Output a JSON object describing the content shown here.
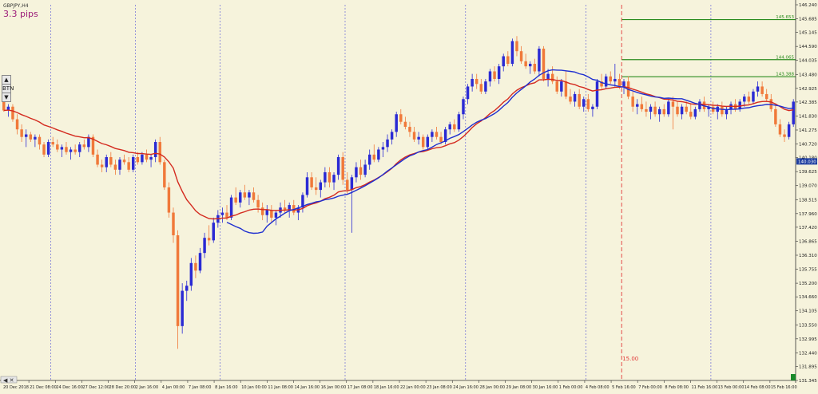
{
  "header": {
    "symbol_label": "GBPJPY,H4",
    "spread_label": "3.3 pips"
  },
  "side_controls": {
    "up_label": "▲",
    "mid_label": "BTN",
    "down_label": "▼"
  },
  "colors": {
    "background": "#f6f3dc",
    "bull_candle": "#2a2ad4",
    "bear_candle": "#f0793a",
    "ma_fast": "#d42a1f",
    "ma_slow": "#1f2fd0",
    "level_line": "#2a8c1e",
    "vline": "#6a6ad8",
    "marker_line": "#e23a3a"
  },
  "chart_data": {
    "type": "candlestick",
    "ylim": [
      131.345,
      146.24
    ],
    "y_ticks": [
      "146.240",
      "145.685",
      "145.145",
      "144.590",
      "144.035",
      "143.480",
      "142.925",
      "142.385",
      "141.830",
      "141.275",
      "140.720",
      "140.180",
      "139.625",
      "139.070",
      "138.515",
      "137.960",
      "137.420",
      "136.865",
      "136.310",
      "135.755",
      "135.200",
      "134.660",
      "134.105",
      "133.550",
      "132.995",
      "132.440",
      "131.895",
      "131.345"
    ],
    "x_labels": [
      "20 Dec 2018",
      "21 Dec 08:00",
      "24 Dec 16:00",
      "27 Dec 12:00",
      "28 Dec 20:00",
      "2 Jan 16:00",
      "4 Jan 00:00",
      "7 Jan 08:00",
      "8 Jan 16:00",
      "10 Jan 00:00",
      "11 Jan 08:00",
      "14 Jan 16:00",
      "16 Jan 00:00",
      "17 Jan 08:00",
      "18 Jan 16:00",
      "22 Jan 00:00",
      "23 Jan 08:00",
      "24 Jan 16:00",
      "28 Jan 00:00",
      "29 Jan 08:00",
      "30 Jan 16:00",
      "1 Feb 00:00",
      "4 Feb 08:00",
      "5 Feb 16:00",
      "7 Feb 00:00",
      "8 Feb 08:00",
      "11 Feb 16:00",
      "13 Feb 00:00",
      "14 Feb 08:00",
      "15 Feb 16:00"
    ],
    "current_price": "140.030",
    "levels": [
      {
        "label": "145.653",
        "price": 145.653,
        "from_index": 139
      },
      {
        "label": "144.065",
        "price": 144.065,
        "from_index": 139
      },
      {
        "label": "143.388",
        "price": 143.388,
        "from_index": 139
      }
    ],
    "vertical_marker": {
      "label": "15.00",
      "index": 139
    },
    "period_separator_indices": [
      11,
      30,
      49,
      77,
      104,
      131,
      159,
      186,
      213
    ],
    "candles": [
      {
        "o": 142.5,
        "h": 142.6,
        "l": 142.0,
        "c": 142.05
      },
      {
        "o": 142.05,
        "h": 142.3,
        "l": 141.8,
        "c": 142.2
      },
      {
        "o": 142.2,
        "h": 142.3,
        "l": 141.6,
        "c": 141.7
      },
      {
        "o": 141.7,
        "h": 141.9,
        "l": 141.1,
        "c": 141.3
      },
      {
        "o": 141.3,
        "h": 141.5,
        "l": 140.8,
        "c": 141.0
      },
      {
        "o": 141.0,
        "h": 141.3,
        "l": 140.6,
        "c": 141.1
      },
      {
        "o": 141.1,
        "h": 141.2,
        "l": 140.8,
        "c": 140.9
      },
      {
        "o": 140.9,
        "h": 141.1,
        "l": 140.6,
        "c": 141.0
      },
      {
        "o": 141.0,
        "h": 141.1,
        "l": 140.5,
        "c": 140.7
      },
      {
        "o": 140.7,
        "h": 140.8,
        "l": 140.2,
        "c": 140.3
      },
      {
        "o": 140.3,
        "h": 140.9,
        "l": 140.2,
        "c": 140.8
      },
      {
        "o": 140.8,
        "h": 141.0,
        "l": 140.6,
        "c": 140.7
      },
      {
        "o": 140.7,
        "h": 140.9,
        "l": 140.4,
        "c": 140.5
      },
      {
        "o": 140.5,
        "h": 140.7,
        "l": 140.2,
        "c": 140.6
      },
      {
        "o": 140.6,
        "h": 140.8,
        "l": 140.3,
        "c": 140.4
      },
      {
        "o": 140.4,
        "h": 140.6,
        "l": 140.1,
        "c": 140.5
      },
      {
        "o": 140.5,
        "h": 140.7,
        "l": 140.3,
        "c": 140.4
      },
      {
        "o": 140.4,
        "h": 140.8,
        "l": 140.2,
        "c": 140.7
      },
      {
        "o": 140.7,
        "h": 140.9,
        "l": 140.5,
        "c": 140.6
      },
      {
        "o": 140.6,
        "h": 141.1,
        "l": 140.4,
        "c": 141.0
      },
      {
        "o": 141.0,
        "h": 141.1,
        "l": 140.2,
        "c": 140.3
      },
      {
        "o": 140.3,
        "h": 140.5,
        "l": 139.8,
        "c": 139.9
      },
      {
        "o": 139.9,
        "h": 140.1,
        "l": 139.6,
        "c": 139.8
      },
      {
        "o": 139.8,
        "h": 140.3,
        "l": 139.6,
        "c": 140.2
      },
      {
        "o": 140.2,
        "h": 140.4,
        "l": 139.8,
        "c": 139.9
      },
      {
        "o": 139.9,
        "h": 140.1,
        "l": 139.5,
        "c": 139.7
      },
      {
        "o": 139.7,
        "h": 140.2,
        "l": 139.5,
        "c": 140.1
      },
      {
        "o": 140.1,
        "h": 140.3,
        "l": 139.9,
        "c": 140.0
      },
      {
        "o": 140.0,
        "h": 140.2,
        "l": 139.6,
        "c": 139.7
      },
      {
        "o": 139.7,
        "h": 140.3,
        "l": 139.6,
        "c": 140.2
      },
      {
        "o": 140.2,
        "h": 140.4,
        "l": 139.9,
        "c": 140.0
      },
      {
        "o": 140.0,
        "h": 140.4,
        "l": 139.9,
        "c": 140.3
      },
      {
        "o": 140.3,
        "h": 140.5,
        "l": 140.0,
        "c": 140.1
      },
      {
        "o": 140.1,
        "h": 140.3,
        "l": 139.8,
        "c": 140.2
      },
      {
        "o": 140.2,
        "h": 140.9,
        "l": 140.0,
        "c": 140.8
      },
      {
        "o": 140.8,
        "h": 141.0,
        "l": 139.9,
        "c": 140.0
      },
      {
        "o": 140.0,
        "h": 140.1,
        "l": 138.9,
        "c": 139.0
      },
      {
        "o": 139.0,
        "h": 139.2,
        "l": 137.8,
        "c": 138.0
      },
      {
        "o": 138.0,
        "h": 138.2,
        "l": 136.8,
        "c": 137.1
      },
      {
        "o": 137.1,
        "h": 137.3,
        "l": 132.6,
        "c": 133.5
      },
      {
        "o": 133.5,
        "h": 135.2,
        "l": 133.2,
        "c": 134.9
      },
      {
        "o": 134.9,
        "h": 135.3,
        "l": 134.5,
        "c": 135.1
      },
      {
        "o": 135.1,
        "h": 136.2,
        "l": 134.9,
        "c": 136.0
      },
      {
        "o": 136.0,
        "h": 136.3,
        "l": 135.4,
        "c": 135.7
      },
      {
        "o": 135.7,
        "h": 136.6,
        "l": 135.6,
        "c": 136.4
      },
      {
        "o": 136.4,
        "h": 137.2,
        "l": 136.2,
        "c": 137.0
      },
      {
        "o": 137.0,
        "h": 137.5,
        "l": 136.7,
        "c": 136.9
      },
      {
        "o": 136.9,
        "h": 137.8,
        "l": 136.8,
        "c": 137.6
      },
      {
        "o": 137.6,
        "h": 138.1,
        "l": 137.4,
        "c": 137.9
      },
      {
        "o": 137.9,
        "h": 138.2,
        "l": 137.6,
        "c": 138.0
      },
      {
        "o": 138.0,
        "h": 138.3,
        "l": 137.7,
        "c": 137.8
      },
      {
        "o": 137.8,
        "h": 138.7,
        "l": 137.7,
        "c": 138.6
      },
      {
        "o": 138.6,
        "h": 139.0,
        "l": 138.3,
        "c": 138.4
      },
      {
        "o": 138.4,
        "h": 138.9,
        "l": 138.2,
        "c": 138.8
      },
      {
        "o": 138.8,
        "h": 139.1,
        "l": 138.5,
        "c": 138.6
      },
      {
        "o": 138.6,
        "h": 138.9,
        "l": 138.3,
        "c": 138.8
      },
      {
        "o": 138.8,
        "h": 139.0,
        "l": 138.4,
        "c": 138.5
      },
      {
        "o": 138.5,
        "h": 138.7,
        "l": 138.0,
        "c": 138.2
      },
      {
        "o": 138.2,
        "h": 138.4,
        "l": 137.7,
        "c": 137.9
      },
      {
        "o": 137.9,
        "h": 138.3,
        "l": 137.6,
        "c": 138.1
      },
      {
        "o": 138.1,
        "h": 138.3,
        "l": 137.6,
        "c": 137.8
      },
      {
        "o": 137.8,
        "h": 138.1,
        "l": 137.5,
        "c": 138.0
      },
      {
        "o": 138.0,
        "h": 138.4,
        "l": 137.8,
        "c": 138.2
      },
      {
        "o": 138.2,
        "h": 138.5,
        "l": 138.0,
        "c": 138.1
      },
      {
        "o": 138.1,
        "h": 138.4,
        "l": 137.8,
        "c": 138.3
      },
      {
        "o": 138.3,
        "h": 138.5,
        "l": 137.9,
        "c": 138.0
      },
      {
        "o": 138.0,
        "h": 138.3,
        "l": 137.7,
        "c": 138.2
      },
      {
        "o": 138.2,
        "h": 138.8,
        "l": 138.0,
        "c": 138.7
      },
      {
        "o": 138.7,
        "h": 139.6,
        "l": 138.6,
        "c": 139.4
      },
      {
        "o": 139.4,
        "h": 139.6,
        "l": 138.9,
        "c": 139.0
      },
      {
        "o": 139.0,
        "h": 139.4,
        "l": 138.7,
        "c": 138.9
      },
      {
        "o": 138.9,
        "h": 139.3,
        "l": 138.6,
        "c": 139.2
      },
      {
        "o": 139.2,
        "h": 139.8,
        "l": 139.0,
        "c": 139.6
      },
      {
        "o": 139.6,
        "h": 139.8,
        "l": 139.0,
        "c": 139.2
      },
      {
        "o": 139.2,
        "h": 139.6,
        "l": 138.9,
        "c": 139.5
      },
      {
        "o": 139.5,
        "h": 140.3,
        "l": 139.3,
        "c": 140.2
      },
      {
        "o": 140.2,
        "h": 140.4,
        "l": 139.1,
        "c": 139.3
      },
      {
        "o": 139.3,
        "h": 139.6,
        "l": 138.7,
        "c": 138.9
      },
      {
        "o": 138.9,
        "h": 139.5,
        "l": 137.2,
        "c": 139.4
      },
      {
        "o": 139.4,
        "h": 140.0,
        "l": 139.2,
        "c": 139.8
      },
      {
        "o": 139.8,
        "h": 140.1,
        "l": 139.3,
        "c": 139.5
      },
      {
        "o": 139.5,
        "h": 140.1,
        "l": 139.4,
        "c": 139.9
      },
      {
        "o": 139.9,
        "h": 140.5,
        "l": 139.7,
        "c": 140.3
      },
      {
        "o": 140.3,
        "h": 140.7,
        "l": 140.0,
        "c": 140.1
      },
      {
        "o": 140.1,
        "h": 140.6,
        "l": 140.0,
        "c": 140.5
      },
      {
        "o": 140.5,
        "h": 140.8,
        "l": 140.2,
        "c": 140.6
      },
      {
        "o": 140.6,
        "h": 141.1,
        "l": 140.4,
        "c": 140.9
      },
      {
        "o": 140.9,
        "h": 141.3,
        "l": 140.7,
        "c": 141.2
      },
      {
        "o": 141.2,
        "h": 142.0,
        "l": 141.0,
        "c": 141.9
      },
      {
        "o": 141.9,
        "h": 142.1,
        "l": 141.5,
        "c": 141.6
      },
      {
        "o": 141.6,
        "h": 141.8,
        "l": 141.3,
        "c": 141.4
      },
      {
        "o": 141.4,
        "h": 141.6,
        "l": 141.0,
        "c": 141.2
      },
      {
        "o": 141.2,
        "h": 141.4,
        "l": 140.8,
        "c": 140.9
      },
      {
        "o": 140.9,
        "h": 141.2,
        "l": 140.7,
        "c": 141.0
      },
      {
        "o": 141.0,
        "h": 141.1,
        "l": 140.5,
        "c": 140.6
      },
      {
        "o": 140.6,
        "h": 141.1,
        "l": 140.5,
        "c": 141.0
      },
      {
        "o": 141.0,
        "h": 141.3,
        "l": 140.8,
        "c": 141.2
      },
      {
        "o": 141.2,
        "h": 141.4,
        "l": 140.9,
        "c": 141.0
      },
      {
        "o": 141.0,
        "h": 141.2,
        "l": 140.7,
        "c": 140.8
      },
      {
        "o": 140.8,
        "h": 141.4,
        "l": 140.7,
        "c": 141.3
      },
      {
        "o": 141.3,
        "h": 141.6,
        "l": 141.1,
        "c": 141.5
      },
      {
        "o": 141.5,
        "h": 141.7,
        "l": 141.2,
        "c": 141.3
      },
      {
        "o": 141.3,
        "h": 142.0,
        "l": 141.2,
        "c": 141.9
      },
      {
        "o": 141.9,
        "h": 142.6,
        "l": 141.7,
        "c": 142.5
      },
      {
        "o": 142.5,
        "h": 143.1,
        "l": 142.3,
        "c": 143.0
      },
      {
        "o": 143.0,
        "h": 143.5,
        "l": 142.8,
        "c": 143.3
      },
      {
        "o": 143.3,
        "h": 143.5,
        "l": 142.9,
        "c": 143.1
      },
      {
        "o": 143.1,
        "h": 143.3,
        "l": 142.7,
        "c": 142.8
      },
      {
        "o": 142.8,
        "h": 143.3,
        "l": 142.7,
        "c": 143.2
      },
      {
        "o": 143.2,
        "h": 143.7,
        "l": 143.0,
        "c": 143.6
      },
      {
        "o": 143.6,
        "h": 143.8,
        "l": 143.2,
        "c": 143.3
      },
      {
        "o": 143.3,
        "h": 143.9,
        "l": 143.1,
        "c": 143.8
      },
      {
        "o": 143.8,
        "h": 144.3,
        "l": 143.6,
        "c": 144.2
      },
      {
        "o": 144.2,
        "h": 144.4,
        "l": 143.8,
        "c": 143.9
      },
      {
        "o": 143.9,
        "h": 144.9,
        "l": 143.8,
        "c": 144.8
      },
      {
        "o": 144.8,
        "h": 145.0,
        "l": 144.2,
        "c": 144.4
      },
      {
        "o": 144.4,
        "h": 144.6,
        "l": 143.9,
        "c": 144.0
      },
      {
        "o": 144.0,
        "h": 144.3,
        "l": 143.7,
        "c": 143.8
      },
      {
        "o": 143.8,
        "h": 144.0,
        "l": 143.5,
        "c": 143.9
      },
      {
        "o": 143.9,
        "h": 144.1,
        "l": 143.5,
        "c": 143.6
      },
      {
        "o": 143.6,
        "h": 144.6,
        "l": 143.4,
        "c": 144.5
      },
      {
        "o": 144.5,
        "h": 144.6,
        "l": 143.2,
        "c": 143.3
      },
      {
        "o": 143.3,
        "h": 143.7,
        "l": 143.0,
        "c": 143.5
      },
      {
        "o": 143.5,
        "h": 143.8,
        "l": 143.1,
        "c": 143.2
      },
      {
        "o": 143.2,
        "h": 143.4,
        "l": 142.7,
        "c": 142.8
      },
      {
        "o": 142.8,
        "h": 143.3,
        "l": 142.6,
        "c": 143.2
      },
      {
        "o": 143.2,
        "h": 143.6,
        "l": 142.5,
        "c": 142.6
      },
      {
        "o": 142.6,
        "h": 142.9,
        "l": 142.3,
        "c": 142.4
      },
      {
        "o": 142.4,
        "h": 142.8,
        "l": 142.2,
        "c": 142.7
      },
      {
        "o": 142.7,
        "h": 142.9,
        "l": 142.1,
        "c": 142.2
      },
      {
        "o": 142.2,
        "h": 142.6,
        "l": 142.0,
        "c": 142.5
      },
      {
        "o": 142.5,
        "h": 142.7,
        "l": 142.0,
        "c": 142.1
      },
      {
        "o": 142.1,
        "h": 142.3,
        "l": 141.8,
        "c": 142.2
      },
      {
        "o": 142.2,
        "h": 143.3,
        "l": 142.1,
        "c": 143.2
      },
      {
        "o": 143.2,
        "h": 143.5,
        "l": 142.9,
        "c": 143.0
      },
      {
        "o": 143.0,
        "h": 143.5,
        "l": 142.9,
        "c": 143.4
      },
      {
        "o": 143.4,
        "h": 143.6,
        "l": 143.1,
        "c": 143.2
      },
      {
        "o": 143.2,
        "h": 143.9,
        "l": 143.0,
        "c": 143.3
      },
      {
        "o": 143.3,
        "h": 143.5,
        "l": 142.9,
        "c": 143.0
      },
      {
        "o": 143.0,
        "h": 143.3,
        "l": 142.7,
        "c": 143.2
      },
      {
        "o": 143.2,
        "h": 143.4,
        "l": 142.5,
        "c": 142.6
      },
      {
        "o": 142.6,
        "h": 142.8,
        "l": 142.0,
        "c": 142.2
      },
      {
        "o": 142.2,
        "h": 142.5,
        "l": 141.9,
        "c": 142.3
      },
      {
        "o": 142.3,
        "h": 142.6,
        "l": 142.0,
        "c": 142.1
      },
      {
        "o": 142.1,
        "h": 142.4,
        "l": 141.8,
        "c": 142.0
      },
      {
        "o": 142.0,
        "h": 142.3,
        "l": 141.7,
        "c": 142.2
      },
      {
        "o": 142.2,
        "h": 142.4,
        "l": 141.8,
        "c": 141.9
      },
      {
        "o": 141.9,
        "h": 142.2,
        "l": 141.6,
        "c": 142.1
      },
      {
        "o": 142.1,
        "h": 142.3,
        "l": 141.8,
        "c": 141.9
      },
      {
        "o": 141.9,
        "h": 142.5,
        "l": 141.8,
        "c": 142.4
      },
      {
        "o": 142.4,
        "h": 142.6,
        "l": 141.3,
        "c": 142.2
      },
      {
        "o": 142.2,
        "h": 142.4,
        "l": 141.8,
        "c": 141.9
      },
      {
        "o": 141.9,
        "h": 142.3,
        "l": 141.7,
        "c": 142.2
      },
      {
        "o": 142.2,
        "h": 142.4,
        "l": 141.9,
        "c": 142.0
      },
      {
        "o": 142.0,
        "h": 142.3,
        "l": 141.7,
        "c": 141.8
      },
      {
        "o": 141.8,
        "h": 142.2,
        "l": 141.7,
        "c": 142.1
      },
      {
        "o": 142.1,
        "h": 142.5,
        "l": 142.0,
        "c": 142.4
      },
      {
        "o": 142.4,
        "h": 142.6,
        "l": 142.0,
        "c": 142.1
      },
      {
        "o": 142.1,
        "h": 142.3,
        "l": 141.8,
        "c": 142.2
      },
      {
        "o": 142.2,
        "h": 142.4,
        "l": 141.9,
        "c": 142.0
      },
      {
        "o": 142.0,
        "h": 142.3,
        "l": 141.7,
        "c": 142.2
      },
      {
        "o": 142.2,
        "h": 142.4,
        "l": 141.8,
        "c": 141.9
      },
      {
        "o": 141.9,
        "h": 142.2,
        "l": 141.7,
        "c": 142.1
      },
      {
        "o": 142.1,
        "h": 142.4,
        "l": 141.9,
        "c": 142.3
      },
      {
        "o": 142.3,
        "h": 142.5,
        "l": 142.0,
        "c": 142.1
      },
      {
        "o": 142.1,
        "h": 142.5,
        "l": 142.0,
        "c": 142.4
      },
      {
        "o": 142.4,
        "h": 142.7,
        "l": 142.2,
        "c": 142.6
      },
      {
        "o": 142.6,
        "h": 142.8,
        "l": 142.3,
        "c": 142.4
      },
      {
        "o": 142.4,
        "h": 142.9,
        "l": 142.3,
        "c": 142.8
      },
      {
        "o": 142.8,
        "h": 143.2,
        "l": 142.6,
        "c": 143.0
      },
      {
        "o": 143.0,
        "h": 143.2,
        "l": 142.6,
        "c": 142.7
      },
      {
        "o": 142.7,
        "h": 142.9,
        "l": 142.4,
        "c": 142.5
      },
      {
        "o": 142.5,
        "h": 142.7,
        "l": 142.0,
        "c": 142.1
      },
      {
        "o": 142.1,
        "h": 142.3,
        "l": 141.4,
        "c": 141.5
      },
      {
        "o": 141.5,
        "h": 141.7,
        "l": 141.0,
        "c": 141.1
      },
      {
        "o": 141.1,
        "h": 141.3,
        "l": 140.8,
        "c": 141.0
      },
      {
        "o": 141.0,
        "h": 141.6,
        "l": 140.9,
        "c": 141.5
      },
      {
        "o": 141.5,
        "h": 142.5,
        "l": 141.4,
        "c": 142.4
      }
    ]
  }
}
